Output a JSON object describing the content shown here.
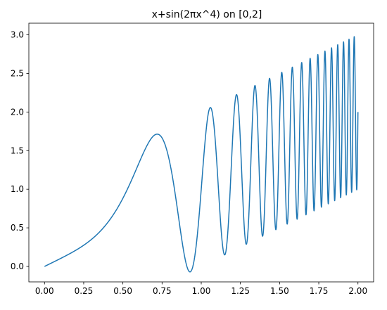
{
  "chart_data": {
    "type": "line",
    "title": "x+sin(2πx^4) on [0,2]",
    "xlabel": "",
    "ylabel": "",
    "function": "x+sin(2πx^4)",
    "xlim": [
      -0.1,
      2.1
    ],
    "ylim": [
      -0.2,
      3.15
    ],
    "x_ticks": [
      0.0,
      0.25,
      0.5,
      0.75,
      1.0,
      1.25,
      1.5,
      1.75,
      2.0
    ],
    "x_tick_labels": [
      "0.00",
      "0.25",
      "0.50",
      "0.75",
      "1.00",
      "1.25",
      "1.50",
      "1.75",
      "2.00"
    ],
    "y_ticks": [
      0.0,
      0.5,
      1.0,
      1.5,
      2.0,
      2.5,
      3.0
    ],
    "y_tick_labels": [
      "0.0",
      "0.5",
      "1.0",
      "1.5",
      "2.0",
      "2.5",
      "3.0"
    ],
    "grid": false,
    "legend": "none",
    "line_color": "#1f77b4",
    "series": [
      {
        "x_range": [
          0,
          2
        ],
        "key_points": [
          {
            "x": 0.0,
            "y": 0.0
          },
          {
            "x": 0.72,
            "y": 1.71
          },
          {
            "x": 0.93,
            "y": -0.06
          },
          {
            "x": 1.06,
            "y": 2.06
          },
          {
            "x": 1.16,
            "y": 0.15
          },
          {
            "x": 1.23,
            "y": 2.23
          },
          {
            "x": 1.29,
            "y": 0.29
          },
          {
            "x": 1.34,
            "y": 2.34
          },
          {
            "x": 1.96,
            "y": 0.96
          },
          {
            "x": 1.98,
            "y": 2.98
          },
          {
            "x": 2.0,
            "y": 2.0
          }
        ]
      }
    ]
  }
}
